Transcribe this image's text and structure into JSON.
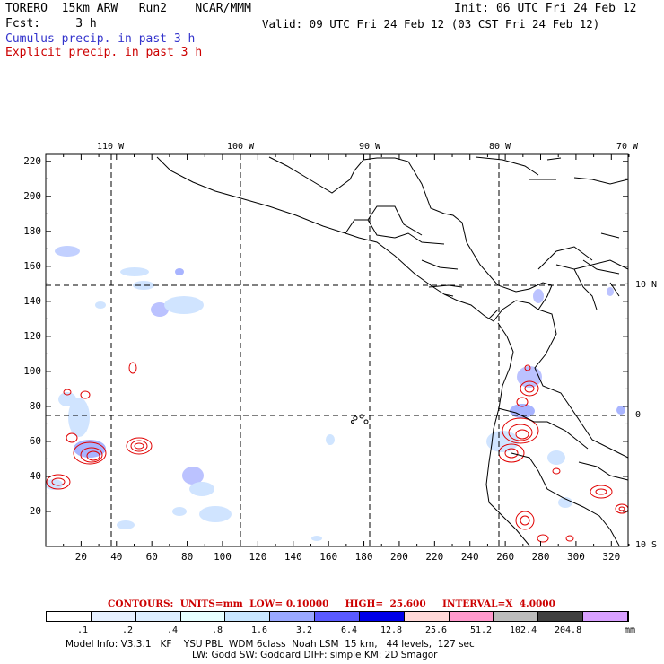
{
  "header": {
    "left1": "TORERO  15km ARW   Run2    NCAR/MMM",
    "right1": "Init: 06 UTC Fri 24 Feb 12",
    "left2": "Fcst:     3 h",
    "right2": "Valid: 09 UTC Fri 24 Feb 12 (03 CST Fri 24 Feb 12)",
    "line3": "Cumulus precip. in past 3 h",
    "line4": "Explicit precip. in past 3 h"
  },
  "map": {
    "lon_labels": [
      "110 W",
      "100 W",
      "90 W",
      "80 W",
      "70 W"
    ],
    "lat_labels": [
      "10 N",
      "0",
      "10 S"
    ],
    "x_ticks": [
      "20",
      "40",
      "60",
      "80",
      "100",
      "120",
      "140",
      "160",
      "180",
      "200",
      "220",
      "240",
      "260",
      "280",
      "300",
      "320"
    ],
    "y_ticks": [
      "220",
      "200",
      "180",
      "160",
      "140",
      "120",
      "100",
      "80",
      "60",
      "40",
      "20"
    ]
  },
  "contour_line": "CONTOURS:  UNITS=mm  LOW= 0.10000     HIGH=  25.600     INTERVAL=X  4.0000",
  "colorbar": {
    "labels": [
      ".1",
      ".2",
      ".4",
      ".8",
      "1.6",
      "3.2",
      "6.4",
      "12.8",
      "25.6",
      "51.2",
      "102.4",
      "204.8"
    ],
    "unit": "mm",
    "colors": [
      "#ffffff",
      "#e6f0ff",
      "#ddeeff",
      "#e6ffff",
      "#c8e6ff",
      "#9aa8ff",
      "#5a5aff",
      "#0000e8",
      "#ffd8d8",
      "#ff99cc",
      "#bcbcbc",
      "#404040",
      "#d8a0ff"
    ]
  },
  "footer": {
    "line1": "Model Info: V3.3.1   KF    YSU PBL  WDM 6class  Noah LSM  15 km,   44 levels,  127 sec",
    "line2": "LW: Godd SW: Goddard DIFF: simple KM: 2D Smagor"
  }
}
